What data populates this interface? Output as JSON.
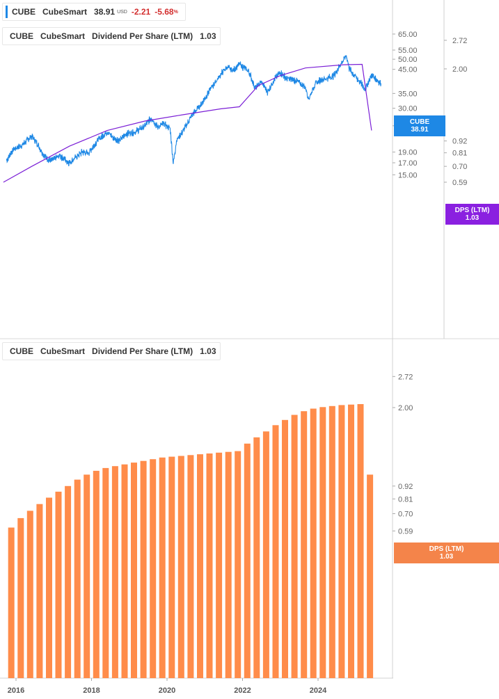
{
  "legend_top_price": {
    "ticker": "CUBE",
    "name": "CubeSmart",
    "price": "38.91",
    "currency": "USD",
    "change": "-2.21",
    "change_pct": "-5.68",
    "pct_symbol": "%",
    "color": "#1e88e5"
  },
  "legend_top_dps": {
    "ticker": "CUBE",
    "name": "CubeSmart",
    "series": "Dividend Per Share (LTM)",
    "value": "1.03",
    "color": "#7b1fd6"
  },
  "legend_bottom": {
    "ticker": "CUBE",
    "name": "CubeSmart",
    "series": "Dividend Per Share (LTM)",
    "value": "1.03",
    "color": "#ff8c4a"
  },
  "tags": {
    "price": {
      "label": "CUBE",
      "value": "38.91",
      "color": "#1e88e5"
    },
    "dps_top": {
      "label": "DPS (LTM)",
      "value": "1.03",
      "color": "#8a20e0"
    },
    "dps_bottom": {
      "label": "DPS (LTM)",
      "value": "1.03",
      "color": "#f4844a"
    }
  },
  "chart_data": [
    {
      "type": "line",
      "scale": "log",
      "y_price_ticks": [
        "65.00",
        "55.00",
        "50.00",
        "45.00",
        "35.00",
        "30.00",
        "25.00",
        "19.00",
        "17.00",
        "15.00"
      ],
      "y_dps_ticks": [
        "2.72",
        "2.00",
        "0.92",
        "0.81",
        "0.70",
        "0.59"
      ],
      "series": [
        {
          "name": "CubeSmart",
          "color": "#1e88e5",
          "points": [
            [
              "2015-10",
              17.4
            ],
            [
              "2015-12",
              19.5
            ],
            [
              "2016-03",
              20.5
            ],
            [
              "2016-06",
              22.5
            ],
            [
              "2016-08",
              20.5
            ],
            [
              "2016-10",
              18.3
            ],
            [
              "2016-12",
              17.3
            ],
            [
              "2017-03",
              18.3
            ],
            [
              "2017-05",
              17.4
            ],
            [
              "2017-06",
              17.0
            ],
            [
              "2017-08",
              18.0
            ],
            [
              "2017-10",
              19.0
            ],
            [
              "2017-12",
              18.8
            ],
            [
              "2018-03",
              21.5
            ],
            [
              "2018-06",
              23.5
            ],
            [
              "2018-08",
              22.0
            ],
            [
              "2018-10",
              21.5
            ],
            [
              "2018-12",
              23.0
            ],
            [
              "2019-03",
              23.5
            ],
            [
              "2019-06",
              25.0
            ],
            [
              "2019-08",
              27.2
            ],
            [
              "2019-10",
              24.7
            ],
            [
              "2019-12",
              25.5
            ],
            [
              "2020-02",
              24.3
            ],
            [
              "2020-03",
              16.8
            ],
            [
              "2020-04",
              21.5
            ],
            [
              "2020-06",
              23.5
            ],
            [
              "2020-09",
              28.0
            ],
            [
              "2020-12",
              31.5
            ],
            [
              "2021-03",
              37.0
            ],
            [
              "2021-06",
              42.5
            ],
            [
              "2021-08",
              46.0
            ],
            [
              "2021-10",
              44.5
            ],
            [
              "2021-12",
              47.5
            ],
            [
              "2022-03",
              44.0
            ],
            [
              "2022-05",
              37.0
            ],
            [
              "2022-07",
              39.5
            ],
            [
              "2022-09",
              35.5
            ],
            [
              "2022-11",
              40.5
            ],
            [
              "2023-01",
              43.5
            ],
            [
              "2023-03",
              41.0
            ],
            [
              "2023-06",
              40.0
            ],
            [
              "2023-09",
              37.5
            ],
            [
              "2023-10",
              33.0
            ],
            [
              "2023-12",
              38.5
            ],
            [
              "2024-02",
              40.5
            ],
            [
              "2024-04",
              41.0
            ],
            [
              "2024-06",
              42.0
            ],
            [
              "2024-08",
              47.0
            ],
            [
              "2024-10",
              52.0
            ],
            [
              "2024-11",
              45.0
            ],
            [
              "2025-02",
              40.0
            ],
            [
              "2025-04",
              36.5
            ],
            [
              "2025-06",
              42.5
            ],
            [
              "2025-08",
              40.0
            ],
            [
              "2025-09",
              38.91
            ]
          ]
        },
        {
          "name": "Dividend Per Share (LTM)",
          "color": "#7b1fd6",
          "points": [
            [
              "2015-09",
              0.59
            ],
            [
              "2016-06",
              0.7
            ],
            [
              "2017-06",
              0.87
            ],
            [
              "2018-06",
              1.03
            ],
            [
              "2019-06",
              1.14
            ],
            [
              "2020-06",
              1.22
            ],
            [
              "2021-06",
              1.3
            ],
            [
              "2021-12",
              1.33
            ],
            [
              "2022-06",
              1.67
            ],
            [
              "2023-01",
              1.86
            ],
            [
              "2023-09",
              2.02
            ],
            [
              "2024-09",
              2.09
            ],
            [
              "2025-03",
              2.1
            ],
            [
              "2025-06",
              1.03
            ]
          ]
        }
      ]
    },
    {
      "type": "bar",
      "scale": "log",
      "x_ticks": [
        "2016",
        "2018",
        "2020",
        "2022",
        "2024"
      ],
      "y_ticks": [
        "2.72",
        "2.00",
        "0.92",
        "0.81",
        "0.70",
        "0.59"
      ],
      "series": [
        {
          "name": "Dividend Per Share (LTM)",
          "color": "#ff8c4a",
          "categories": [
            "2015-Q4",
            "2016-Q1",
            "2016-Q2",
            "2016-Q3",
            "2016-Q4",
            "2017-Q1",
            "2017-Q2",
            "2017-Q3",
            "2017-Q4",
            "2018-Q1",
            "2018-Q2",
            "2018-Q3",
            "2018-Q4",
            "2019-Q1",
            "2019-Q2",
            "2019-Q3",
            "2019-Q4",
            "2020-Q1",
            "2020-Q2",
            "2020-Q3",
            "2020-Q4",
            "2021-Q1",
            "2021-Q2",
            "2021-Q3",
            "2021-Q4",
            "2022-Q1",
            "2022-Q2",
            "2022-Q3",
            "2022-Q4",
            "2023-Q1",
            "2023-Q2",
            "2023-Q3",
            "2023-Q4",
            "2024-Q1",
            "2024-Q2",
            "2024-Q3",
            "2024-Q4",
            "2025-Q1",
            "2025-Q2"
          ],
          "values": [
            0.61,
            0.67,
            0.72,
            0.77,
            0.82,
            0.87,
            0.92,
            0.98,
            1.03,
            1.07,
            1.1,
            1.12,
            1.14,
            1.16,
            1.18,
            1.2,
            1.22,
            1.23,
            1.24,
            1.25,
            1.26,
            1.27,
            1.28,
            1.29,
            1.3,
            1.4,
            1.49,
            1.58,
            1.68,
            1.77,
            1.86,
            1.93,
            1.98,
            2.01,
            2.03,
            2.05,
            2.06,
            2.07,
            1.03
          ]
        }
      ]
    }
  ]
}
